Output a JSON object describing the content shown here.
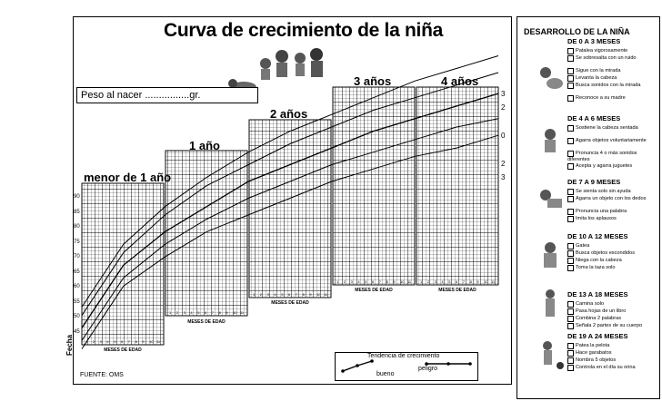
{
  "title": "Curva de crecimiento de la niña",
  "birth_weight_label": "Peso al nacer ................gr.",
  "age_groups": [
    "menor de 1 año",
    "1 año",
    "2 años",
    "3 años",
    "4 años"
  ],
  "x_axis_label": "MESES DE EDAD",
  "month_ticks": [
    "1",
    "2",
    "3",
    "4",
    "5",
    "6",
    "7",
    "8",
    "9",
    "10",
    "11"
  ],
  "y_labels": [
    "90",
    "85",
    "80",
    "75",
    "70",
    "65",
    "60",
    "55",
    "50",
    "45"
  ],
  "right_labels": [
    "3",
    "2",
    "0",
    "2",
    "3"
  ],
  "fecha_label": "Fecha",
  "source": "FUENTE: OMS",
  "trend": {
    "title": "Tendencia de crecimiento",
    "good": "bueno",
    "danger": "peligro"
  },
  "chart_data": {
    "type": "line",
    "title": "Curva de crecimiento de la niña",
    "xlabel": "MESES DE EDAD",
    "ylabel": "",
    "x": [
      0,
      6,
      12,
      18,
      24,
      30,
      36,
      42,
      48,
      54,
      60
    ],
    "ylim": [
      45,
      110
    ],
    "series": [
      {
        "values": [
          54,
          69,
          78,
          85,
          91,
          96,
          100,
          104,
          108,
          111,
          114
        ]
      },
      {
        "values": [
          52,
          67,
          76,
          83,
          88,
          93,
          97,
          101,
          104,
          107,
          110
        ]
      },
      {
        "values": [
          49,
          64,
          72,
          78,
          84,
          88,
          92,
          96,
          99,
          102,
          105
        ]
      },
      {
        "values": [
          46,
          61,
          69,
          75,
          80,
          84,
          88,
          91,
          94,
          97,
          99
        ]
      },
      {
        "values": [
          44,
          59,
          66,
          72,
          76,
          80,
          84,
          87,
          90,
          92,
          95
        ]
      }
    ]
  },
  "development": {
    "title": "DESARROLLO DE LA NIÑA",
    "sections": [
      {
        "head": "DE 0 A 3 MESES",
        "items": [
          "Patalea vigorosamente",
          "Se sobresalta con un ruido",
          "Sigue con la mirada",
          "Levanta la cabeza",
          "Busca sonidos con la mirada",
          "Reconoce a su madre"
        ]
      },
      {
        "head": "DE 4 A 6 MESES",
        "items": [
          "Sostiene la cabeza sentada",
          "Agarra objetos voluntariamente",
          "Pronuncia 4 o más sonidos diferentes",
          "Acepta y agarra juguetes"
        ]
      },
      {
        "head": "DE 7 A 9 MESES",
        "items": [
          "Se sienta solo sin ayuda",
          "Agarra un objeto con los dedos",
          "Pronuncia una palabra",
          "Imita los aplausos"
        ]
      },
      {
        "head": "DE 10 A 12 MESES",
        "items": [
          "Gatea",
          "Busca objetos escondidos",
          "Niega con la cabeza",
          "Toma la taza solo"
        ]
      },
      {
        "head": "DE 13 A 18 MESES",
        "items": [
          "Camina solo",
          "Pasa hojas de un libro",
          "Combina 2 palabras",
          "Señala 2 partes de su cuerpo"
        ]
      },
      {
        "head": "DE 19 A 24 MESES",
        "items": [
          "Patea la pelota",
          "Hace garabatos",
          "Nombra 5 objetos",
          "Controla en el día su orina"
        ]
      }
    ]
  }
}
